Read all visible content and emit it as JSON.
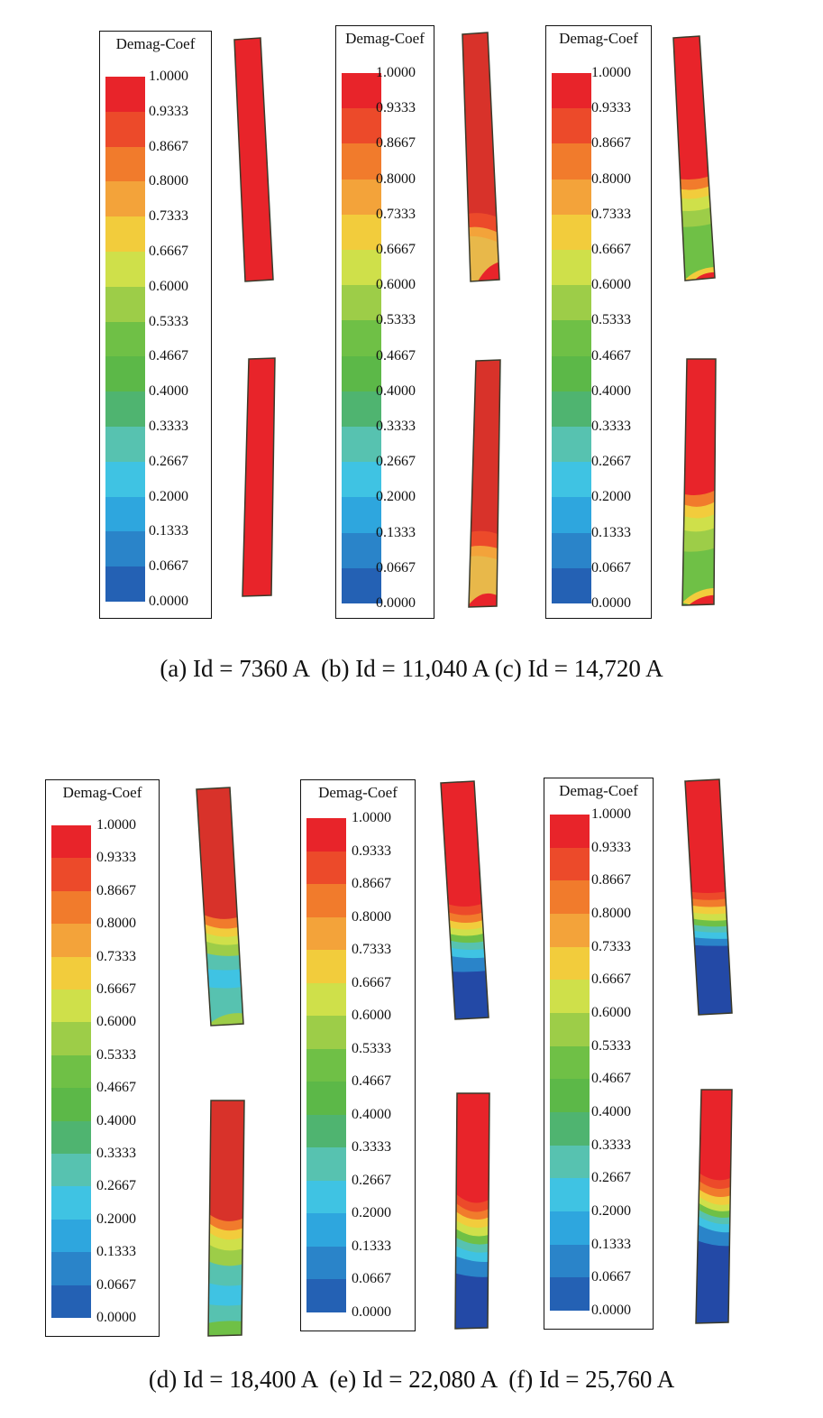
{
  "legend_title": "Demag-Coef",
  "legend_values": [
    "1.0000",
    "0.9333",
    "0.8667",
    "0.8000",
    "0.7333",
    "0.6667",
    "0.6000",
    "0.5333",
    "0.4667",
    "0.4000",
    "0.3333",
    "0.2667",
    "0.2000",
    "0.1333",
    "0.0667",
    "0.0000"
  ],
  "legend_colors": [
    "#e8242a",
    "#ec4a2a",
    "#f17b2c",
    "#f3a33a",
    "#f2cc3c",
    "#cfe04a",
    "#9dcd48",
    "#6fc046",
    "#5cb848",
    "#4fb470",
    "#57c2b0",
    "#3fc3e3",
    "#2ea6de",
    "#2a84c9",
    "#2461b4",
    "#2349a6"
  ],
  "captions": [
    "(a) Id = 7360 A  (b) Id = 11,040 A (c) Id = 14,720 A",
    "(d) Id = 18,400 A  (e) Id = 22,080 A  (f) Id = 25,760 A"
  ],
  "panels": [
    {
      "id": "a",
      "current": "Id = 7360 A"
    },
    {
      "id": "b",
      "current": "Id = 11,040 A"
    },
    {
      "id": "c",
      "current": "Id = 14,720 A"
    },
    {
      "id": "d",
      "current": "Id = 18,400 A"
    },
    {
      "id": "e",
      "current": "Id = 22,080 A"
    },
    {
      "id": "f",
      "current": "Id = 25,760 A"
    }
  ]
}
